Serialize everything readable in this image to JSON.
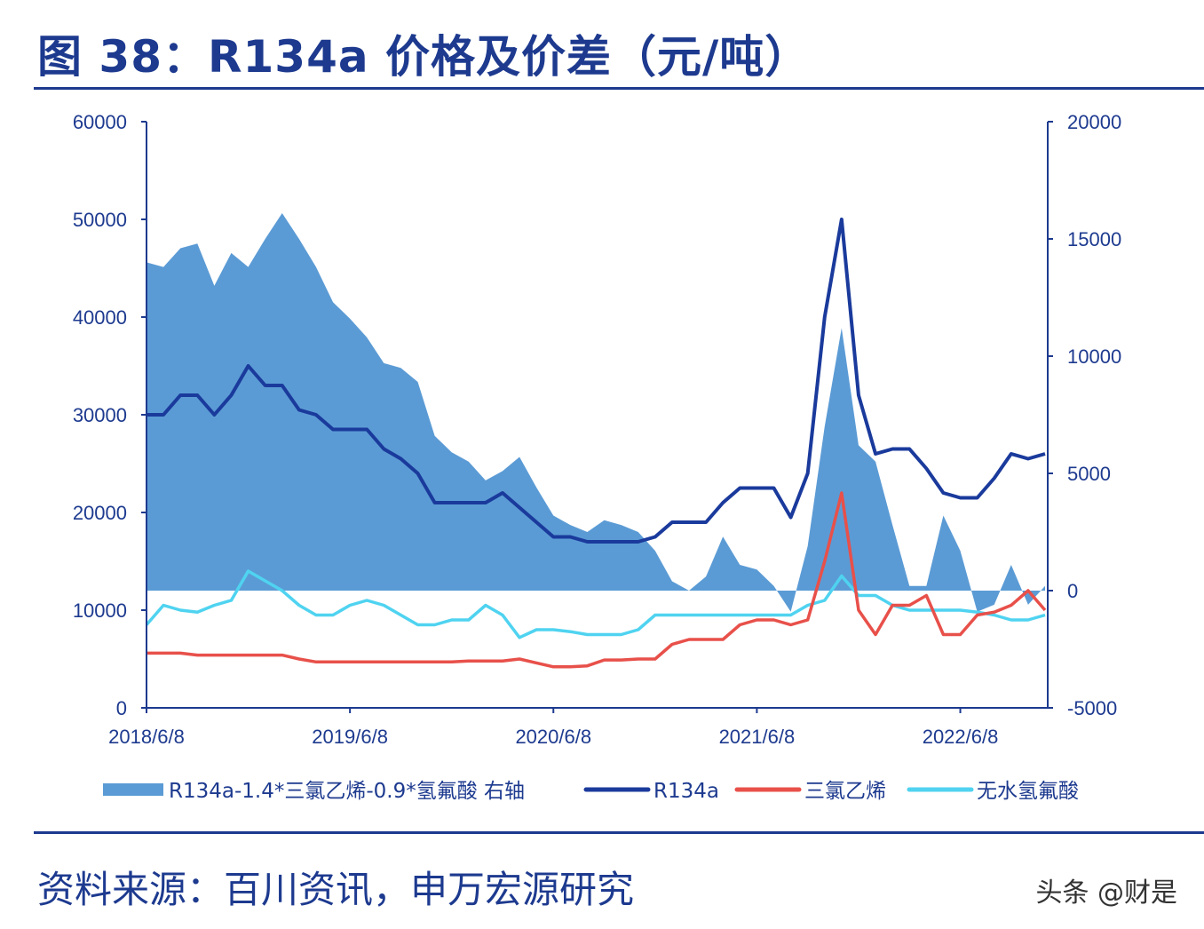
{
  "title": "图 38：R134a 价格及价差（元/吨）",
  "source": "资料来源：百川资讯，申万宏源研究",
  "watermark": "头条 @财是",
  "chart_data": {
    "type": "line+area",
    "title": "图 38：R134a 价格及价差（元/吨）",
    "x_ticks": [
      "2018/6/8",
      "2019/6/8",
      "2020/6/8",
      "2021/6/8",
      "2022/6/8"
    ],
    "left_axis": {
      "ylim": [
        0,
        60000
      ],
      "ticks": [
        "0",
        "10000",
        "20000",
        "30000",
        "40000",
        "50000",
        "60000"
      ]
    },
    "right_axis": {
      "ylim": [
        -5000,
        20000
      ],
      "ticks": [
        "-5000",
        "0",
        "5000",
        "10000",
        "15000",
        "20000"
      ]
    },
    "grid": false,
    "legend_position": "bottom",
    "months": [
      "2018-06",
      "2018-07",
      "2018-08",
      "2018-09",
      "2018-10",
      "2018-11",
      "2018-12",
      "2019-01",
      "2019-02",
      "2019-03",
      "2019-04",
      "2019-05",
      "2019-06",
      "2019-07",
      "2019-08",
      "2019-09",
      "2019-10",
      "2019-11",
      "2019-12",
      "2020-01",
      "2020-02",
      "2020-03",
      "2020-04",
      "2020-05",
      "2020-06",
      "2020-07",
      "2020-08",
      "2020-09",
      "2020-10",
      "2020-11",
      "2020-12",
      "2021-01",
      "2021-02",
      "2021-03",
      "2021-04",
      "2021-05",
      "2021-06",
      "2021-07",
      "2021-08",
      "2021-09",
      "2021-10",
      "2021-11",
      "2021-12",
      "2022-01",
      "2022-02",
      "2022-03",
      "2022-04",
      "2022-05",
      "2022-06",
      "2022-07",
      "2022-08",
      "2022-09",
      "2022-10",
      "2022-11"
    ],
    "series": [
      {
        "name": "R134a-1.4*三氯乙烯-0.9*氢氟酸 右轴",
        "type": "area",
        "axis": "right",
        "color": "#5b9bd5",
        "values": [
          14000,
          13800,
          14600,
          14800,
          13000,
          14400,
          13800,
          15000,
          16100,
          15000,
          13800,
          12300,
          11600,
          10800,
          9700,
          9500,
          8900,
          6600,
          5900,
          5500,
          4700,
          5100,
          5700,
          4400,
          3200,
          2800,
          2500,
          3000,
          2800,
          2500,
          1700,
          400,
          0,
          600,
          2300,
          1100,
          900,
          200,
          -900,
          1900,
          7000,
          11200,
          6200,
          5500,
          2800,
          200,
          200,
          3200,
          1700,
          -900,
          -600,
          1100,
          -600,
          200
        ]
      },
      {
        "name": "R134a",
        "type": "line",
        "axis": "left",
        "color": "#1a3a9c",
        "values": [
          30000,
          30000,
          32000,
          32000,
          30000,
          32000,
          35000,
          33000,
          33000,
          30500,
          30000,
          28500,
          28500,
          28500,
          26500,
          25500,
          24000,
          21000,
          21000,
          21000,
          21000,
          22000,
          20500,
          19000,
          17500,
          17500,
          17000,
          17000,
          17000,
          17000,
          17500,
          19000,
          19000,
          19000,
          21000,
          22500,
          22500,
          22500,
          19500,
          24000,
          40000,
          50000,
          32000,
          26000,
          26500,
          26500,
          24500,
          22000,
          21500,
          21500,
          23500,
          26000,
          25500,
          26000
        ]
      },
      {
        "name": "三氯乙烯",
        "type": "line",
        "axis": "left",
        "color": "#e8504a",
        "values": [
          5600,
          5600,
          5600,
          5400,
          5400,
          5400,
          5400,
          5400,
          5400,
          5000,
          4700,
          4700,
          4700,
          4700,
          4700,
          4700,
          4700,
          4700,
          4700,
          4800,
          4800,
          4800,
          5000,
          4600,
          4200,
          4200,
          4300,
          4900,
          4900,
          5000,
          5000,
          6500,
          7000,
          7000,
          7000,
          8500,
          9000,
          9000,
          8500,
          9000,
          15000,
          22000,
          10000,
          7500,
          10500,
          10500,
          11500,
          7500,
          7500,
          9500,
          9800,
          10500,
          12000,
          10000
        ]
      },
      {
        "name": "无水氢氟酸",
        "type": "line",
        "axis": "left",
        "color": "#4fd3f0",
        "values": [
          8500,
          10500,
          10000,
          9800,
          10500,
          11000,
          14000,
          13000,
          12000,
          10500,
          9500,
          9500,
          10500,
          11000,
          10500,
          9500,
          8500,
          8500,
          9000,
          9000,
          10500,
          9500,
          7200,
          8000,
          8000,
          7800,
          7500,
          7500,
          7500,
          8000,
          9500,
          9500,
          9500,
          9500,
          9500,
          9500,
          9500,
          9500,
          9500,
          10500,
          11000,
          13500,
          11500,
          11500,
          10500,
          10000,
          10000,
          10000,
          10000,
          9800,
          9500,
          9000,
          9000,
          9500
        ]
      }
    ]
  }
}
